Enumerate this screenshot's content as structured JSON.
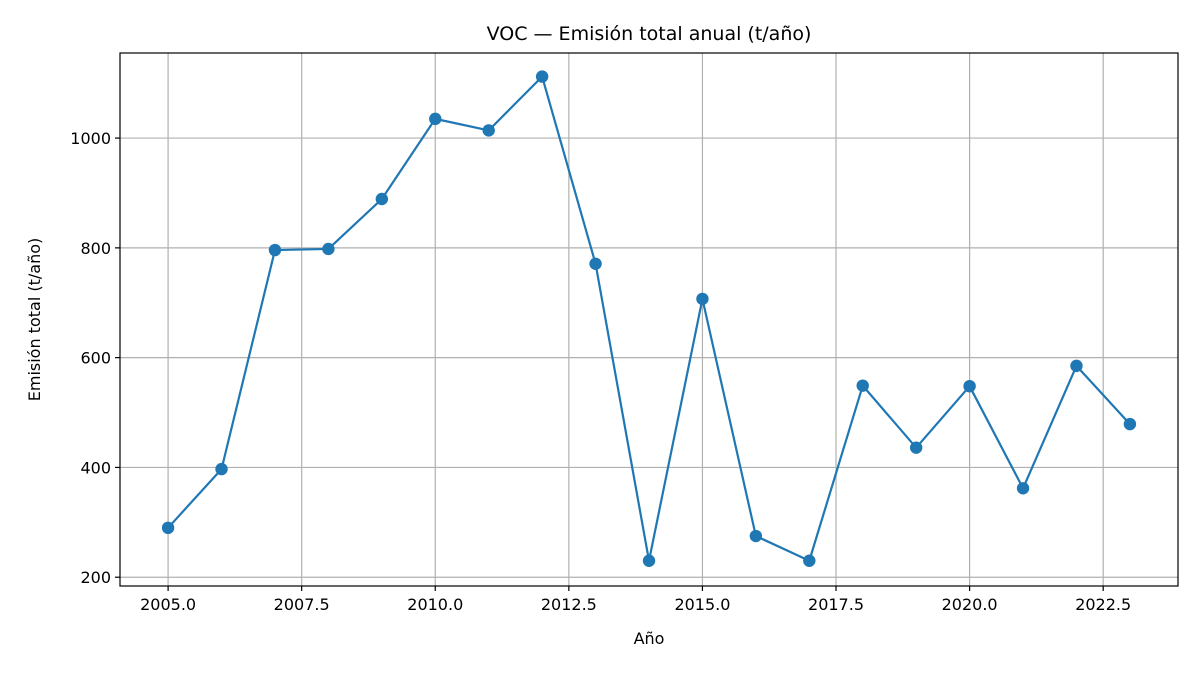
{
  "chart_data": {
    "type": "line",
    "title": "VOC — Emisión total anual (t/año)",
    "xlabel": "Año",
    "ylabel": "Emisión total (t/año)",
    "xlim": [
      2004.1,
      2023.9
    ],
    "ylim": [
      184,
      1155
    ],
    "x_ticks": [
      2005.0,
      2007.5,
      2010.0,
      2012.5,
      2015.0,
      2017.5,
      2020.0,
      2022.5
    ],
    "x_tick_labels": [
      "2005.0",
      "2007.5",
      "2010.0",
      "2012.5",
      "2015.0",
      "2017.5",
      "2020.0",
      "2022.5"
    ],
    "y_ticks": [
      200,
      400,
      600,
      800,
      1000
    ],
    "y_tick_labels": [
      "200",
      "400",
      "600",
      "800",
      "1000"
    ],
    "grid": true,
    "series": [
      {
        "color": "#1f77b4",
        "x": [
          2005,
          2006,
          2007,
          2008,
          2009,
          2010,
          2011,
          2012,
          2013,
          2014,
          2015,
          2016,
          2017,
          2018,
          2019,
          2020,
          2021,
          2022,
          2023
        ],
        "y": [
          290,
          397,
          796,
          798,
          889,
          1035,
          1014,
          1112,
          771,
          230,
          707,
          275,
          230,
          549,
          436,
          548,
          362,
          585,
          479
        ]
      }
    ]
  }
}
